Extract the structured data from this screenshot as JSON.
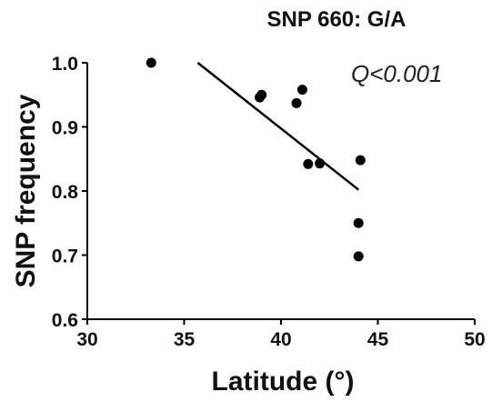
{
  "chart_data": {
    "type": "scatter",
    "title": "SNP 660: G/A",
    "xlabel": "Latitude (°)",
    "ylabel": "SNP frequency",
    "annotation": "Q<0.001",
    "xlim": [
      30,
      50
    ],
    "ylim": [
      0.6,
      1.0
    ],
    "x_ticks": [
      30,
      35,
      40,
      45,
      50
    ],
    "x_tick_labels": [
      "30",
      "35",
      "40",
      "45",
      "50"
    ],
    "y_ticks": [
      0.6,
      0.7,
      0.8,
      0.9,
      1.0
    ],
    "y_tick_labels": [
      "0.6",
      "0.7",
      "0.8",
      "0.9",
      "1.0"
    ],
    "grid": false,
    "points": [
      {
        "x": 33.3,
        "y": 1.0
      },
      {
        "x": 38.9,
        "y": 0.946
      },
      {
        "x": 39.0,
        "y": 0.95
      },
      {
        "x": 40.8,
        "y": 0.937
      },
      {
        "x": 41.1,
        "y": 0.958
      },
      {
        "x": 41.4,
        "y": 0.842
      },
      {
        "x": 42.0,
        "y": 0.843
      },
      {
        "x": 44.1,
        "y": 0.848
      },
      {
        "x": 44.0,
        "y": 0.75
      },
      {
        "x": 44.0,
        "y": 0.698
      }
    ],
    "trendline": {
      "x": [
        35.7,
        44.0
      ],
      "y": [
        1.0,
        0.802
      ]
    },
    "colors": {
      "points": "#000000",
      "trendline": "#000000",
      "axes": "#000000",
      "text": "#111111"
    }
  }
}
